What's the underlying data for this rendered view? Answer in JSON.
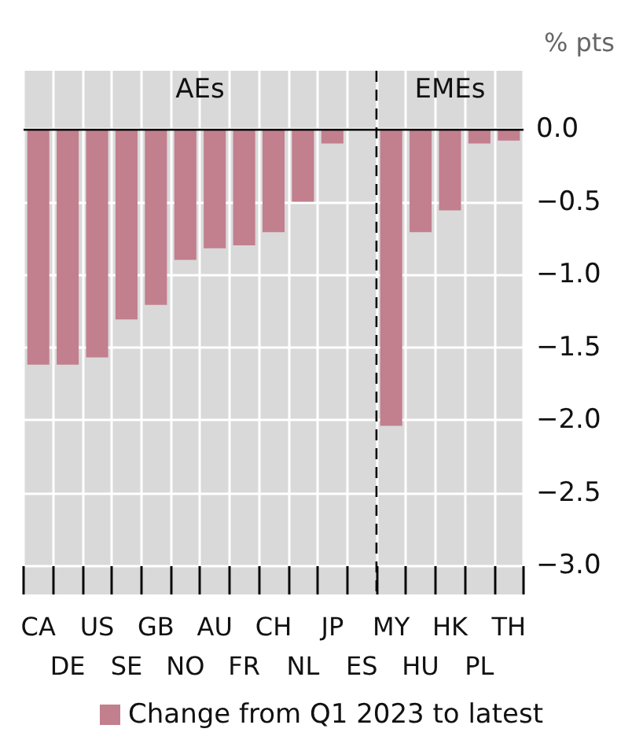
{
  "chart_data": {
    "type": "bar",
    "ylabel": "% pts",
    "categories": [
      "CA",
      "DE",
      "US",
      "SE",
      "GB",
      "NO",
      "AU",
      "FR",
      "CH",
      "NL",
      "JP",
      "ES",
      "MY",
      "HU",
      "HK",
      "PL",
      "TH"
    ],
    "series": [
      {
        "name": "Change from Q1 2023 to latest",
        "color": "#c27f8e",
        "values": [
          -1.62,
          -1.62,
          -1.57,
          -1.31,
          -1.21,
          -0.9,
          -0.82,
          -0.8,
          -0.71,
          -0.5,
          -0.1,
          null,
          -2.04,
          -0.71,
          -0.56,
          -0.1,
          -0.08
        ]
      }
    ],
    "ylim": [
      -3.2,
      0.4
    ],
    "yticks": [
      {
        "value": 0,
        "label": "0.0"
      },
      {
        "value": -0.5,
        "label": "−0.5"
      },
      {
        "value": -1,
        "label": "−1.0"
      },
      {
        "value": -1.5,
        "label": "−1.5"
      },
      {
        "value": -2,
        "label": "−2.0"
      },
      {
        "value": -2.5,
        "label": "−2.5"
      },
      {
        "value": -3,
        "label": "−3.0"
      }
    ],
    "ref_lines": [
      {
        "axis": "y",
        "value": 0,
        "color": "#000000",
        "line_style": "solid"
      },
      {
        "axis": "x",
        "value": "MY",
        "color": "#000000",
        "line_style": "dashed"
      }
    ],
    "annotations": [
      "AEs",
      "EMEs"
    ],
    "grid": true,
    "legend": "bottom"
  }
}
